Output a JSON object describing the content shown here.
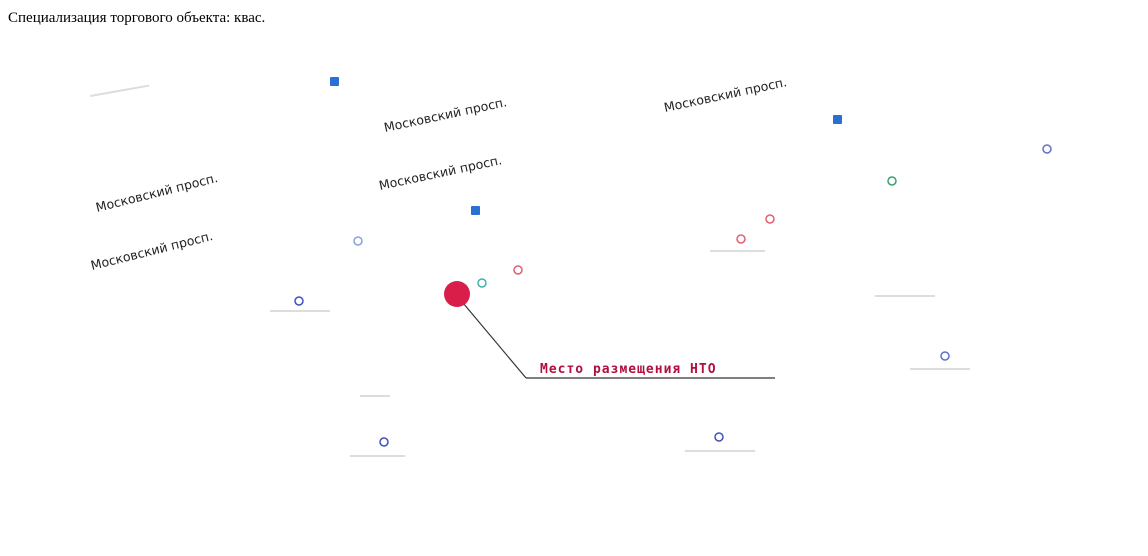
{
  "heading": "Специализация торгового объекта: квас.",
  "streets": [
    "Московский просп.",
    "Московский просп.",
    "Московский просп.",
    "Московский просп.",
    "Московский просп."
  ],
  "marker": {
    "label": "Место размещения НТО"
  }
}
